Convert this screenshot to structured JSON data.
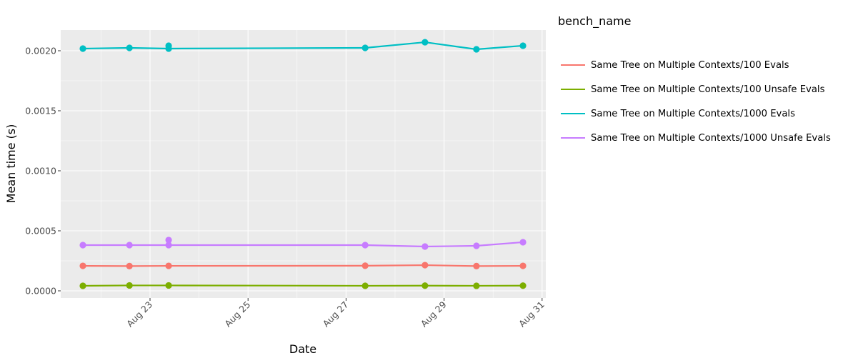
{
  "chart_data": {
    "type": "line",
    "title": "",
    "xlabel": "Date",
    "ylabel": "Mean time (s)",
    "x_ticks": [
      "Aug 23",
      "Aug 25",
      "Aug 27",
      "Aug 29",
      "Aug 31"
    ],
    "y_ticks": [
      "0.0000",
      "0.0005",
      "0.0010",
      "0.0015",
      "0.0020"
    ],
    "ylim": [
      -5.5e-05,
      0.00217
    ],
    "xlim_days": [
      20.6,
      31.1
    ],
    "grid": true,
    "legend_title": "bench_name",
    "legend_position": "right",
    "series": [
      {
        "name": "Same Tree on Multiple Contexts/100 Evals",
        "color": "#F8766D",
        "points": [
          {
            "x": "Aug 21.63",
            "day": 21.63,
            "y": 0.000208
          },
          {
            "x": "Aug 22.58",
            "day": 22.58,
            "y": 0.000206
          },
          {
            "x": "Aug 23.38",
            "day": 23.38,
            "y": 0.000208
          },
          {
            "x": "Aug 27.39",
            "day": 27.39,
            "y": 0.000209
          },
          {
            "x": "Aug 28.61",
            "day": 28.61,
            "y": 0.000214
          },
          {
            "x": "Aug 29.66",
            "day": 29.66,
            "y": 0.000206
          },
          {
            "x": "Aug 30.61",
            "day": 30.61,
            "y": 0.000208
          }
        ]
      },
      {
        "name": "Same Tree on Multiple Contexts/100 Unsafe Evals",
        "color": "#7CAE00",
        "points": [
          {
            "x": "Aug 21.63",
            "day": 21.63,
            "y": 4.2e-05
          },
          {
            "x": "Aug 22.58",
            "day": 22.58,
            "y": 4.5e-05
          },
          {
            "x": "Aug 23.38",
            "day": 23.38,
            "y": 4.5e-05
          },
          {
            "x": "Aug 27.39",
            "day": 27.39,
            "y": 4.2e-05
          },
          {
            "x": "Aug 28.61",
            "day": 28.61,
            "y": 4.3e-05
          },
          {
            "x": "Aug 29.66",
            "day": 29.66,
            "y": 4.2e-05
          },
          {
            "x": "Aug 30.61",
            "day": 30.61,
            "y": 4.3e-05
          }
        ]
      },
      {
        "name": "Same Tree on Multiple Contexts/1000 Evals",
        "color": "#00BFC4",
        "points": [
          {
            "x": "Aug 21.63",
            "day": 21.63,
            "y": 0.002018
          },
          {
            "x": "Aug 22.58",
            "day": 22.58,
            "y": 0.002024
          },
          {
            "x": "Aug 23.38",
            "day": 23.38,
            "y": 0.002042
          },
          {
            "x": "Aug 23.38",
            "day": 23.38,
            "y": 0.002018
          },
          {
            "x": "Aug 27.39",
            "day": 27.39,
            "y": 0.002024
          },
          {
            "x": "Aug 28.61",
            "day": 28.61,
            "y": 0.002071
          },
          {
            "x": "Aug 29.66",
            "day": 29.66,
            "y": 0.002012
          },
          {
            "x": "Aug 30.61",
            "day": 30.61,
            "y": 0.002042
          }
        ]
      },
      {
        "name": "Same Tree on Multiple Contexts/1000 Unsafe Evals",
        "color": "#C77CFF",
        "points": [
          {
            "x": "Aug 21.63",
            "day": 21.63,
            "y": 0.000381
          },
          {
            "x": "Aug 22.58",
            "day": 22.58,
            "y": 0.000381
          },
          {
            "x": "Aug 23.38",
            "day": 23.38,
            "y": 0.000423
          },
          {
            "x": "Aug 23.38",
            "day": 23.38,
            "y": 0.000381
          },
          {
            "x": "Aug 27.39",
            "day": 27.39,
            "y": 0.000381
          },
          {
            "x": "Aug 28.61",
            "day": 28.61,
            "y": 0.000369
          },
          {
            "x": "Aug 29.66",
            "day": 29.66,
            "y": 0.000375
          },
          {
            "x": "Aug 30.61",
            "day": 30.61,
            "y": 0.000405
          }
        ]
      }
    ]
  },
  "legend": {
    "title": "bench_name",
    "items": [
      {
        "label": "Same Tree on Multiple Contexts/100 Evals",
        "color": "#F8766D"
      },
      {
        "label": "Same Tree on Multiple Contexts/100 Unsafe Evals",
        "color": "#7CAE00"
      },
      {
        "label": "Same Tree on Multiple Contexts/1000 Evals",
        "color": "#00BFC4"
      },
      {
        "label": "Same Tree on Multiple Contexts/1000 Unsafe Evals",
        "color": "#C77CFF"
      }
    ]
  },
  "axes": {
    "x_title": "Date",
    "y_title": "Mean time (s)",
    "x_ticks": [
      {
        "label": "Aug 23",
        "day": 23
      },
      {
        "label": "Aug 25",
        "day": 25
      },
      {
        "label": "Aug 27",
        "day": 27
      },
      {
        "label": "Aug 29",
        "day": 29
      },
      {
        "label": "Aug 31",
        "day": 31
      }
    ],
    "y_ticks": [
      {
        "label": "0.0000",
        "value": 0.0
      },
      {
        "label": "0.0005",
        "value": 0.0005
      },
      {
        "label": "0.0010",
        "value": 0.001
      },
      {
        "label": "0.0015",
        "value": 0.0015
      },
      {
        "label": "0.0020",
        "value": 0.002
      }
    ]
  }
}
